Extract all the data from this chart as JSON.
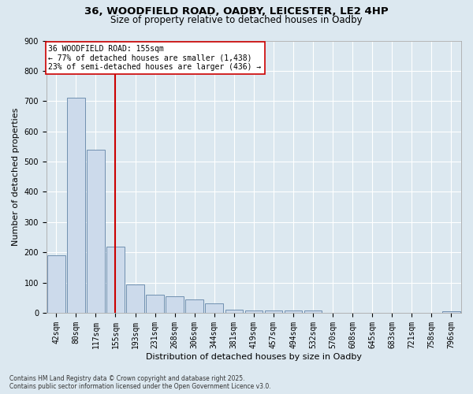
{
  "title_line1": "36, WOODFIELD ROAD, OADBY, LEICESTER, LE2 4HP",
  "title_line2": "Size of property relative to detached houses in Oadby",
  "xlabel": "Distribution of detached houses by size in Oadby",
  "ylabel": "Number of detached properties",
  "footnote_line1": "Contains HM Land Registry data © Crown copyright and database right 2025.",
  "footnote_line2": "Contains public sector information licensed under the Open Government Licence v3.0.",
  "categories": [
    "42sqm",
    "80sqm",
    "117sqm",
    "155sqm",
    "193sqm",
    "231sqm",
    "268sqm",
    "306sqm",
    "344sqm",
    "381sqm",
    "419sqm",
    "457sqm",
    "494sqm",
    "532sqm",
    "570sqm",
    "608sqm",
    "645sqm",
    "683sqm",
    "721sqm",
    "758sqm",
    "796sqm"
  ],
  "values": [
    190,
    710,
    540,
    220,
    95,
    60,
    55,
    45,
    30,
    10,
    8,
    8,
    8,
    8,
    0,
    0,
    0,
    0,
    0,
    0,
    5
  ],
  "bar_color": "#ccdaeb",
  "bar_edge_color": "#7090b0",
  "property_line_x": 3,
  "property_line_color": "#cc0000",
  "annotation_text": "36 WOODFIELD ROAD: 155sqm\n← 77% of detached houses are smaller (1,438)\n23% of semi-detached houses are larger (436) →",
  "annotation_box_color": "#ffffff",
  "annotation_box_edge_color": "#cc0000",
  "ylim": [
    0,
    900
  ],
  "yticks": [
    0,
    100,
    200,
    300,
    400,
    500,
    600,
    700,
    800,
    900
  ],
  "bg_color": "#dce8f0",
  "plot_bg_color": "#dce8f0",
  "grid_color": "#ffffff",
  "title_fontsize": 9.5,
  "subtitle_fontsize": 8.5,
  "annotation_fontsize": 7,
  "axis_label_fontsize": 8,
  "tick_fontsize": 7,
  "footnote_fontsize": 5.5
}
